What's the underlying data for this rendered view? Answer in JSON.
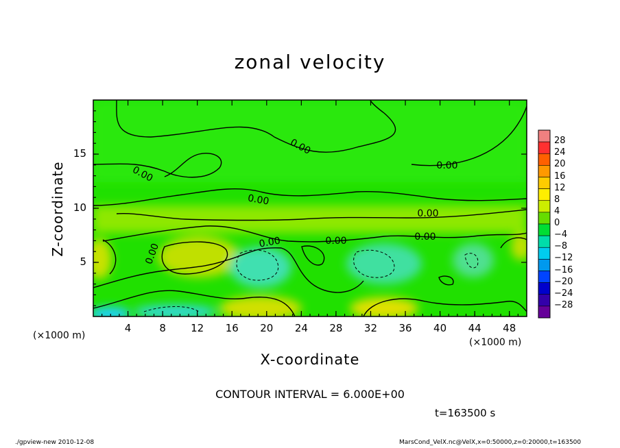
{
  "chart_data": {
    "type": "heatmap",
    "title": "zonal velocity",
    "xlabel": "X-coordinate",
    "ylabel": "Z-coordinate",
    "x_unit": "(×1000 m)",
    "y_unit": "(×1000 m)",
    "xlim": [
      0,
      50
    ],
    "ylim": [
      0,
      20
    ],
    "x_ticks": [
      "4",
      "8",
      "12",
      "16",
      "20",
      "24",
      "28",
      "32",
      "36",
      "40",
      "44",
      "48"
    ],
    "y_ticks": [
      "5",
      "10",
      "15"
    ],
    "contour_interval_label": "CONTOUR INTERVAL = 6.000E+00",
    "contour_labels": [
      "0.00",
      "0.00",
      "0.00",
      "0.00",
      "0.00",
      "0.00",
      "0.00",
      "0.00",
      "0.00"
    ],
    "colorbar": {
      "levels": [
        "28",
        "24",
        "20",
        "16",
        "12",
        "8",
        "4",
        "0",
        "−4",
        "−8",
        "−12",
        "−16",
        "−20",
        "−24",
        "−28"
      ],
      "colors": [
        "#f08080",
        "#ff3030",
        "#ff6000",
        "#ff9900",
        "#ffcc00",
        "#ffee00",
        "#ccee00",
        "#66dd00",
        "#00dd33",
        "#00ddaa",
        "#00ccee",
        "#0099ee",
        "#0044ff",
        "#0000cc",
        "#3300aa",
        "#660099"
      ]
    },
    "field_samples": [
      {
        "x": 2,
        "z": 5,
        "value": 4
      },
      {
        "x": 11,
        "z": 6,
        "value": 6
      },
      {
        "x": 20,
        "z": 4,
        "value": -8
      },
      {
        "x": 20,
        "z": 1,
        "value": 8
      },
      {
        "x": 33,
        "z": 4,
        "value": -6
      },
      {
        "x": 33,
        "z": 1,
        "value": 10
      },
      {
        "x": 44,
        "z": 5,
        "value": -4
      },
      {
        "x": 2,
        "z": 0.5,
        "value": -12
      },
      {
        "x": 11,
        "z": 0.5,
        "value": -10
      },
      {
        "x": 25,
        "z": 15,
        "value": 0
      },
      {
        "x": 35,
        "z": 9,
        "value": 3
      }
    ]
  },
  "time_label": "t=163500 s",
  "footer": {
    "left": "./gpview-new  2010-12-08",
    "right": "MarsCond_VelX.nc@VelX,x=0:50000,z=0:20000,t=163500"
  },
  "colors": {
    "background": "#22dd00",
    "positive": "#aadd00",
    "negative": "#33ddaa"
  }
}
